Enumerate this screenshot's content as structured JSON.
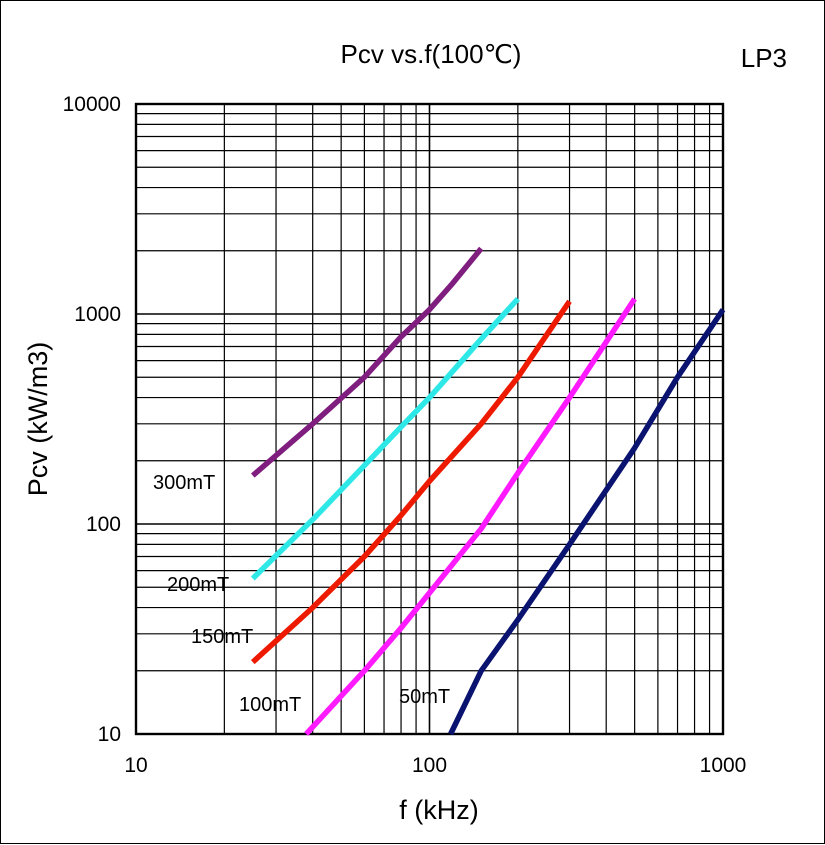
{
  "chart_data": {
    "type": "line",
    "title": "Pcv vs.f(100℃)",
    "material": "LP3",
    "xlabel": "f (kHz)",
    "ylabel": "Pcv (kW/m3)",
    "xscale": "log",
    "yscale": "log",
    "xlim": [
      10,
      1000
    ],
    "ylim": [
      10,
      10000
    ],
    "xticks": [
      10,
      100,
      1000
    ],
    "xtick_labels": [
      "10",
      "100",
      "1000"
    ],
    "yticks": [
      10,
      100,
      1000,
      10000
    ],
    "ytick_labels": [
      "10",
      "100",
      "1000",
      "10000"
    ],
    "grid": true,
    "series": [
      {
        "name": "300mT",
        "label": "300mT",
        "color": "#7f1e7f",
        "x": [
          25,
          40,
          60,
          80,
          100,
          120,
          150
        ],
        "y": [
          170,
          300,
          500,
          780,
          1050,
          1400,
          2050
        ]
      },
      {
        "name": "200mT",
        "label": "200mT",
        "color": "#2ee8e8",
        "x": [
          25,
          40,
          60,
          80,
          100,
          150,
          200
        ],
        "y": [
          55,
          105,
          190,
          290,
          400,
          760,
          1180
        ]
      },
      {
        "name": "150mT",
        "label": "150mT",
        "color": "#ee1a00",
        "x": [
          25,
          40,
          60,
          80,
          100,
          150,
          200,
          300
        ],
        "y": [
          22,
          40,
          70,
          110,
          160,
          300,
          500,
          1150
        ]
      },
      {
        "name": "100mT",
        "label": "100mT",
        "color": "#ff1aff",
        "x": [
          38,
          60,
          80,
          100,
          150,
          200,
          300,
          500
        ],
        "y": [
          10,
          20,
          32,
          47,
          95,
          175,
          400,
          1180
        ]
      },
      {
        "name": "50mT",
        "label": "50mT",
        "color": "#0a1470",
        "x": [
          118,
          150,
          200,
          300,
          500,
          700,
          1000
        ],
        "y": [
          10,
          20,
          35,
          80,
          230,
          500,
          1050
        ]
      }
    ]
  }
}
